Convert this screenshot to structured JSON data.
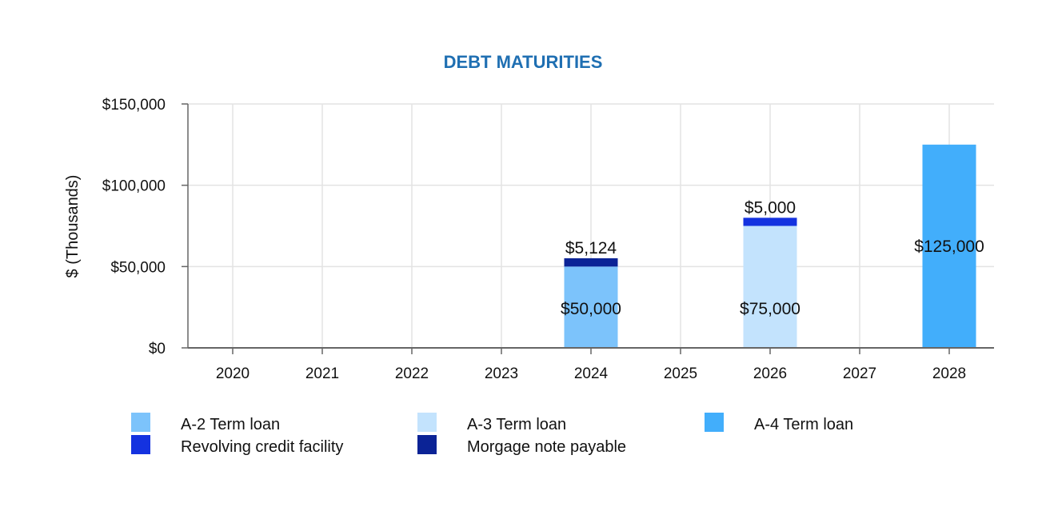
{
  "chart_data": {
    "type": "bar",
    "stacked": true,
    "title": "DEBT MATURITIES",
    "ylabel": "$ (Thousands)",
    "xlabel": "",
    "ylim": [
      0,
      150000
    ],
    "yticks": [
      0,
      50000,
      100000,
      150000
    ],
    "ytick_labels": [
      "$0",
      "$50,000",
      "$100,000",
      "$150,000"
    ],
    "grid": true,
    "legend_position": "bottom",
    "categories": [
      "2020",
      "2021",
      "2022",
      "2023",
      "2024",
      "2025",
      "2026",
      "2027",
      "2028"
    ],
    "series": [
      {
        "name": "A-2 Term loan",
        "color": "#7cc3fb",
        "values": [
          0,
          0,
          0,
          0,
          50000,
          0,
          0,
          0,
          0
        ]
      },
      {
        "name": "A-3 Term loan",
        "color": "#c3e3fd",
        "values": [
          0,
          0,
          0,
          0,
          0,
          0,
          75000,
          0,
          0
        ]
      },
      {
        "name": "A-4 Term loan",
        "color": "#42aefb",
        "values": [
          0,
          0,
          0,
          0,
          0,
          0,
          0,
          0,
          125000
        ]
      },
      {
        "name": "Revolving credit facility",
        "color": "#1432e0",
        "values": [
          0,
          0,
          0,
          0,
          0,
          0,
          5000,
          0,
          0
        ]
      },
      {
        "name": "Morgage note payable",
        "color": "#0b2396",
        "values": [
          0,
          0,
          0,
          0,
          5124,
          0,
          0,
          0,
          0
        ]
      }
    ],
    "data_labels": [
      {
        "category": "2024",
        "series": "A-2 Term loan",
        "text": "$50,000"
      },
      {
        "category": "2024",
        "series": "Morgage note payable",
        "text": "$5,124"
      },
      {
        "category": "2026",
        "series": "A-3 Term loan",
        "text": "$75,000"
      },
      {
        "category": "2026",
        "series": "Revolving credit facility",
        "text": "$5,000"
      },
      {
        "category": "2028",
        "series": "A-4 Term loan",
        "text": "$125,000"
      }
    ]
  }
}
